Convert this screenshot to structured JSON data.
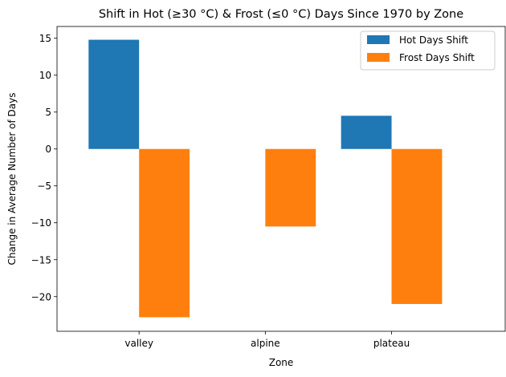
{
  "chart_data": {
    "type": "bar",
    "title": "Shift in Hot (≥30 °C) & Frost (≤0 °C) Days Since 1970 by Zone",
    "xlabel": "Zone",
    "ylabel": "Change in Average Number of Days",
    "categories": [
      "valley",
      "alpine",
      "plateau"
    ],
    "series": [
      {
        "name": "Hot Days Shift",
        "color": "#1f77b4",
        "values": [
          14.8,
          0,
          4.5
        ]
      },
      {
        "name": "Frost Days Shift",
        "color": "#ff7f0e",
        "values": [
          -22.8,
          -10.5,
          -21.0
        ]
      }
    ],
    "ylim": [
      -24.7,
      16.6
    ],
    "yticks": [
      15,
      10,
      5,
      0,
      -5,
      -10,
      -15,
      -20
    ],
    "ytick_labels": [
      "15",
      "10",
      "5",
      "0",
      "−5",
      "−10",
      "−15",
      "−20"
    ],
    "grid": false,
    "legend_position": "top-right"
  }
}
